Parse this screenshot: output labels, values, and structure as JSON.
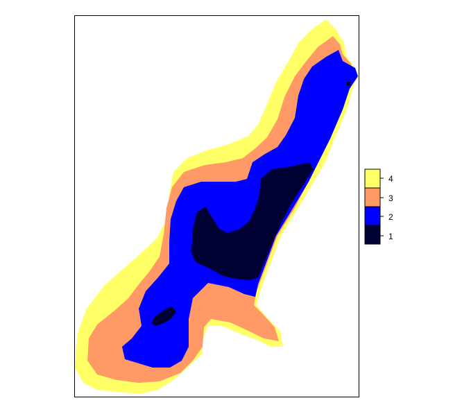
{
  "map": {
    "zones": [
      {
        "class": "4",
        "color": "#FFFF66"
      },
      {
        "class": "3",
        "color": "#FF9966"
      },
      {
        "class": "2",
        "color": "#0000FF"
      },
      {
        "class": "1",
        "color": "#000033"
      }
    ],
    "frame_color": "#000000",
    "background_color": "#FFFFFF"
  },
  "legend": {
    "items": [
      {
        "label": "4",
        "color": "#FFFF66"
      },
      {
        "label": "3",
        "color": "#FF9966"
      },
      {
        "label": "2",
        "color": "#0000FF"
      },
      {
        "label": "1",
        "color": "#000033"
      }
    ]
  }
}
